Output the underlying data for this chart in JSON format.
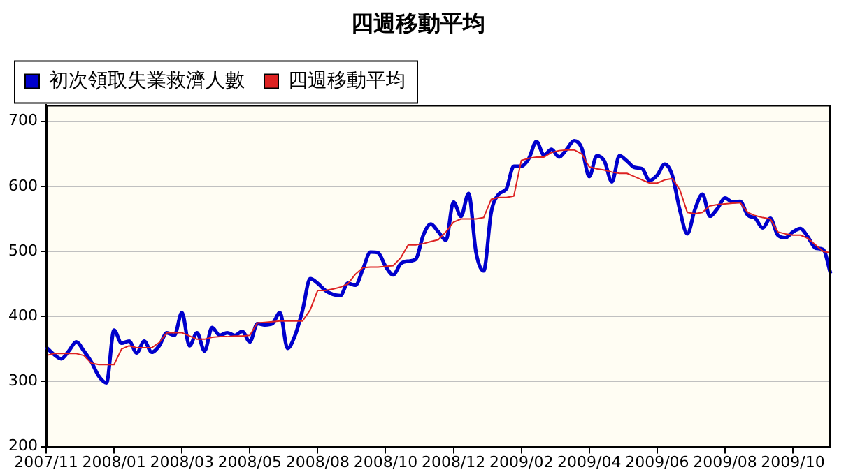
{
  "chart_data": {
    "type": "line",
    "title": "四週移動平均",
    "categories": [
      "2007/11",
      null,
      null,
      null,
      null,
      null,
      null,
      null,
      null,
      "2008/01",
      null,
      null,
      null,
      null,
      null,
      null,
      null,
      null,
      "2008/03",
      null,
      null,
      null,
      null,
      null,
      null,
      null,
      null,
      "2008/05",
      null,
      null,
      null,
      null,
      null,
      null,
      null,
      null,
      "2008/08",
      null,
      null,
      null,
      null,
      null,
      null,
      null,
      null,
      "2008/10",
      null,
      null,
      null,
      null,
      null,
      null,
      null,
      null,
      "2008/12",
      null,
      null,
      null,
      null,
      null,
      null,
      null,
      null,
      "2009/02",
      null,
      null,
      null,
      null,
      null,
      null,
      null,
      null,
      "2009/04",
      null,
      null,
      null,
      null,
      null,
      null,
      null,
      null,
      "2009/06",
      null,
      null,
      null,
      null,
      null,
      null,
      null,
      null,
      "2009/08",
      null,
      null,
      null,
      null,
      null,
      null,
      null,
      null,
      "2009/10",
      null,
      null,
      null,
      null,
      null
    ],
    "series": [
      {
        "name": "初次領取失業救濟人數",
        "color": "#0000cc",
        "values": [
          353,
          342,
          335,
          347,
          361,
          347,
          330,
          308,
          298,
          379,
          359,
          362,
          344,
          362,
          345,
          355,
          375,
          371,
          406,
          355,
          375,
          347,
          383,
          371,
          375,
          371,
          377,
          361,
          389,
          387,
          389,
          406,
          351,
          371,
          410,
          458,
          451,
          440,
          434,
          432,
          451,
          448,
          473,
          499,
          498,
          477,
          464,
          481,
          485,
          488,
          525,
          542,
          530,
          517,
          576,
          554,
          589,
          498,
          470,
          560,
          588,
          596,
          631,
          631,
          643,
          669,
          648,
          657,
          645,
          657,
          670,
          659,
          615,
          647,
          639,
          607,
          647,
          639,
          629,
          627,
          609,
          617,
          634,
          617,
          564,
          527,
          564,
          588,
          554,
          566,
          582,
          576,
          577,
          556,
          551,
          536,
          551,
          525,
          521,
          530,
          535,
          522,
          505,
          503,
          466
        ]
      },
      {
        "name": "四週移動平均",
        "color": "#dd2222",
        "values": [
          340,
          343,
          343,
          343,
          343,
          340,
          328,
          326,
          326,
          326,
          350,
          355,
          352,
          352,
          352,
          360,
          375,
          375,
          375,
          370,
          365,
          365,
          368,
          369,
          369,
          370,
          370,
          371,
          390,
          391,
          392,
          393,
          393,
          393,
          393,
          410,
          440,
          440,
          442,
          445,
          450,
          465,
          475,
          476,
          476,
          477,
          478,
          490,
          510,
          510,
          512,
          515,
          518,
          530,
          545,
          550,
          550,
          550,
          552,
          580,
          583,
          583,
          585,
          640,
          643,
          645,
          645,
          652,
          655,
          656,
          656,
          650,
          630,
          627,
          625,
          622,
          620,
          620,
          615,
          610,
          605,
          605,
          610,
          612,
          595,
          560,
          558,
          560,
          570,
          572,
          573,
          574,
          575,
          560,
          555,
          552,
          550,
          530,
          527,
          525,
          525,
          520,
          510,
          500,
          498
        ]
      }
    ],
    "ylim": [
      200,
      725
    ],
    "yticks": [
      200,
      300,
      400,
      500,
      600,
      700
    ],
    "grid": "y",
    "legend": "top left"
  }
}
